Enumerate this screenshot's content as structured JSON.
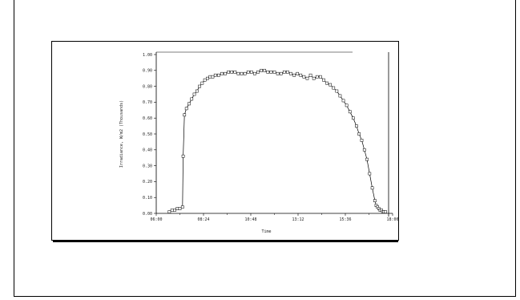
{
  "chart_data": {
    "type": "line",
    "title": "",
    "xlabel": "Time",
    "ylabel": "Irradiance, W/m2 (Thousands)",
    "xlim": [
      "06:00",
      "18:00"
    ],
    "ylim": [
      0,
      1.0
    ],
    "grid": false,
    "legend": "none",
    "marker": "square",
    "x_ticks": [
      "06:00",
      "08:24",
      "10:48",
      "13:12",
      "15:36",
      "18:00"
    ],
    "y_ticks": [
      "0.00",
      "0.10",
      "0.20",
      "0.30",
      "0.40",
      "0.50",
      "0.60",
      "0.70",
      "0.80",
      "0.90",
      "1.00"
    ],
    "series": [
      {
        "x": [
          "06:40",
          "06:48",
          "06:56",
          "07:04",
          "07:12",
          "07:20",
          "07:22",
          "07:26",
          "07:32",
          "07:40",
          "07:48",
          "07:56",
          "08:04",
          "08:12",
          "08:20",
          "08:28",
          "08:36",
          "08:44",
          "08:52",
          "09:00",
          "09:10",
          "09:20",
          "09:30",
          "09:40",
          "09:50",
          "10:00",
          "10:10",
          "10:20",
          "10:30",
          "10:40",
          "10:50",
          "11:00",
          "11:10",
          "11:20",
          "11:30",
          "11:40",
          "11:50",
          "12:00",
          "12:10",
          "12:20",
          "12:30",
          "12:40",
          "12:50",
          "13:00",
          "13:10",
          "13:20",
          "13:30",
          "13:40",
          "13:50",
          "14:00",
          "14:10",
          "14:20",
          "14:30",
          "14:40",
          "14:50",
          "15:00",
          "15:10",
          "15:20",
          "15:30",
          "15:40",
          "15:50",
          "16:00",
          "16:10",
          "16:18",
          "16:26",
          "16:34",
          "16:42",
          "16:50",
          "16:58",
          "17:06",
          "17:10",
          "17:14",
          "17:18",
          "17:22",
          "17:26",
          "17:30",
          "17:34",
          "17:38"
        ],
        "y": [
          0.01,
          0.02,
          0.02,
          0.03,
          0.03,
          0.04,
          0.36,
          0.62,
          0.66,
          0.69,
          0.72,
          0.75,
          0.77,
          0.8,
          0.82,
          0.84,
          0.85,
          0.86,
          0.86,
          0.87,
          0.87,
          0.88,
          0.88,
          0.89,
          0.89,
          0.89,
          0.88,
          0.88,
          0.88,
          0.89,
          0.89,
          0.88,
          0.89,
          0.9,
          0.9,
          0.89,
          0.89,
          0.89,
          0.88,
          0.88,
          0.89,
          0.89,
          0.88,
          0.87,
          0.88,
          0.87,
          0.86,
          0.85,
          0.87,
          0.85,
          0.86,
          0.86,
          0.84,
          0.82,
          0.81,
          0.79,
          0.77,
          0.74,
          0.71,
          0.68,
          0.64,
          0.6,
          0.55,
          0.5,
          0.46,
          0.4,
          0.34,
          0.25,
          0.16,
          0.08,
          0.05,
          0.04,
          0.03,
          0.02,
          0.02,
          0.01,
          0.01,
          0.01
        ]
      }
    ]
  }
}
